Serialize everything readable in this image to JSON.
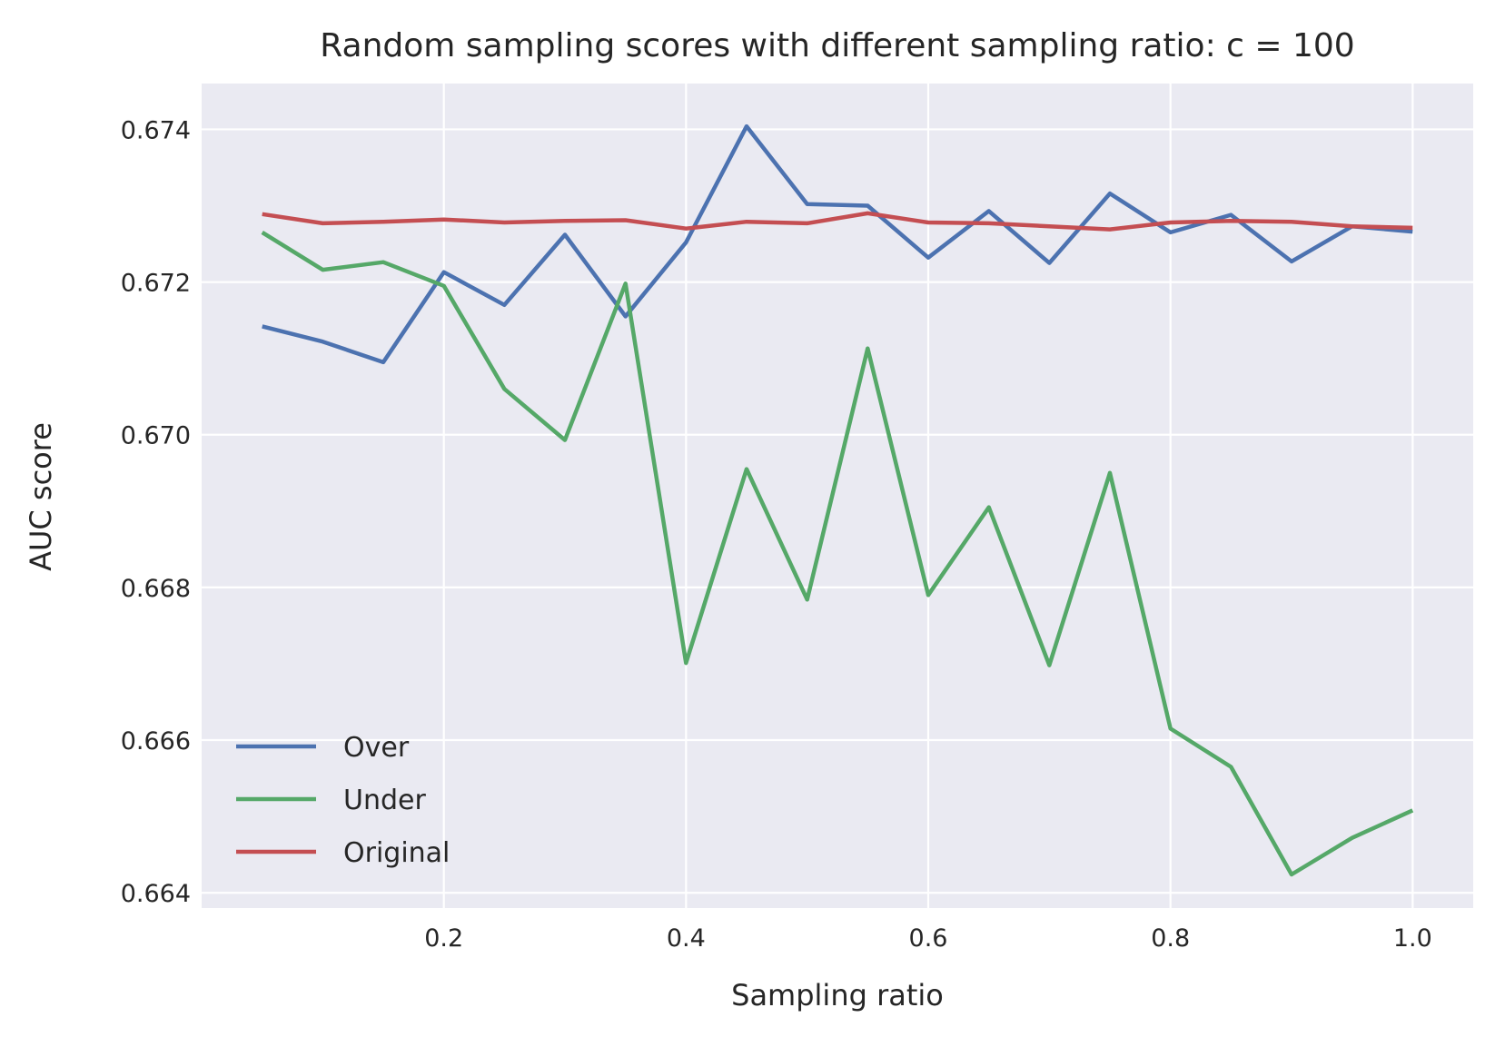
{
  "chart_data": {
    "type": "line",
    "title": "Random sampling scores with different sampling ratio: c = 100",
    "xlabel": "Sampling ratio",
    "ylabel": "AUC score",
    "xlim": [
      0.0,
      1.05
    ],
    "ylim": [
      0.6638,
      0.6746
    ],
    "xticks": [
      0.2,
      0.4,
      0.6,
      0.8,
      1.0
    ],
    "xtick_labels": [
      "0.2",
      "0.4",
      "0.6",
      "0.8",
      "1.0"
    ],
    "yticks": [
      0.664,
      0.666,
      0.668,
      0.67,
      0.672,
      0.674
    ],
    "ytick_labels": [
      "0.664",
      "0.666",
      "0.668",
      "0.670",
      "0.672",
      "0.674"
    ],
    "grid": true,
    "legend_position": "lower-left",
    "x": [
      0.05,
      0.1,
      0.15,
      0.2,
      0.25,
      0.3,
      0.35,
      0.4,
      0.45,
      0.5,
      0.55,
      0.6,
      0.65,
      0.7,
      0.75,
      0.8,
      0.85,
      0.9,
      0.95,
      1.0
    ],
    "series": [
      {
        "name": "Over",
        "color": "#4c72b0",
        "values": [
          0.67142,
          0.67122,
          0.67095,
          0.67213,
          0.6717,
          0.67262,
          0.67155,
          0.67252,
          0.67404,
          0.67302,
          0.673,
          0.67232,
          0.67293,
          0.67225,
          0.67316,
          0.67265,
          0.67288,
          0.67227,
          0.67273,
          0.67266
        ]
      },
      {
        "name": "Under",
        "color": "#55a868",
        "values": [
          0.67265,
          0.67216,
          0.67226,
          0.67195,
          0.6706,
          0.66993,
          0.67198,
          0.66701,
          0.66955,
          0.66784,
          0.67113,
          0.6679,
          0.66905,
          0.66698,
          0.6695,
          0.66615,
          0.66565,
          0.66424,
          0.66472,
          0.66508
        ]
      },
      {
        "name": "Original",
        "color": "#c44e52",
        "values": [
          0.67289,
          0.67277,
          0.67279,
          0.67282,
          0.67278,
          0.6728,
          0.67281,
          0.6727,
          0.67279,
          0.67277,
          0.6729,
          0.67278,
          0.67277,
          0.67273,
          0.67269,
          0.67278,
          0.6728,
          0.67279,
          0.67273,
          0.67271
        ]
      }
    ]
  }
}
